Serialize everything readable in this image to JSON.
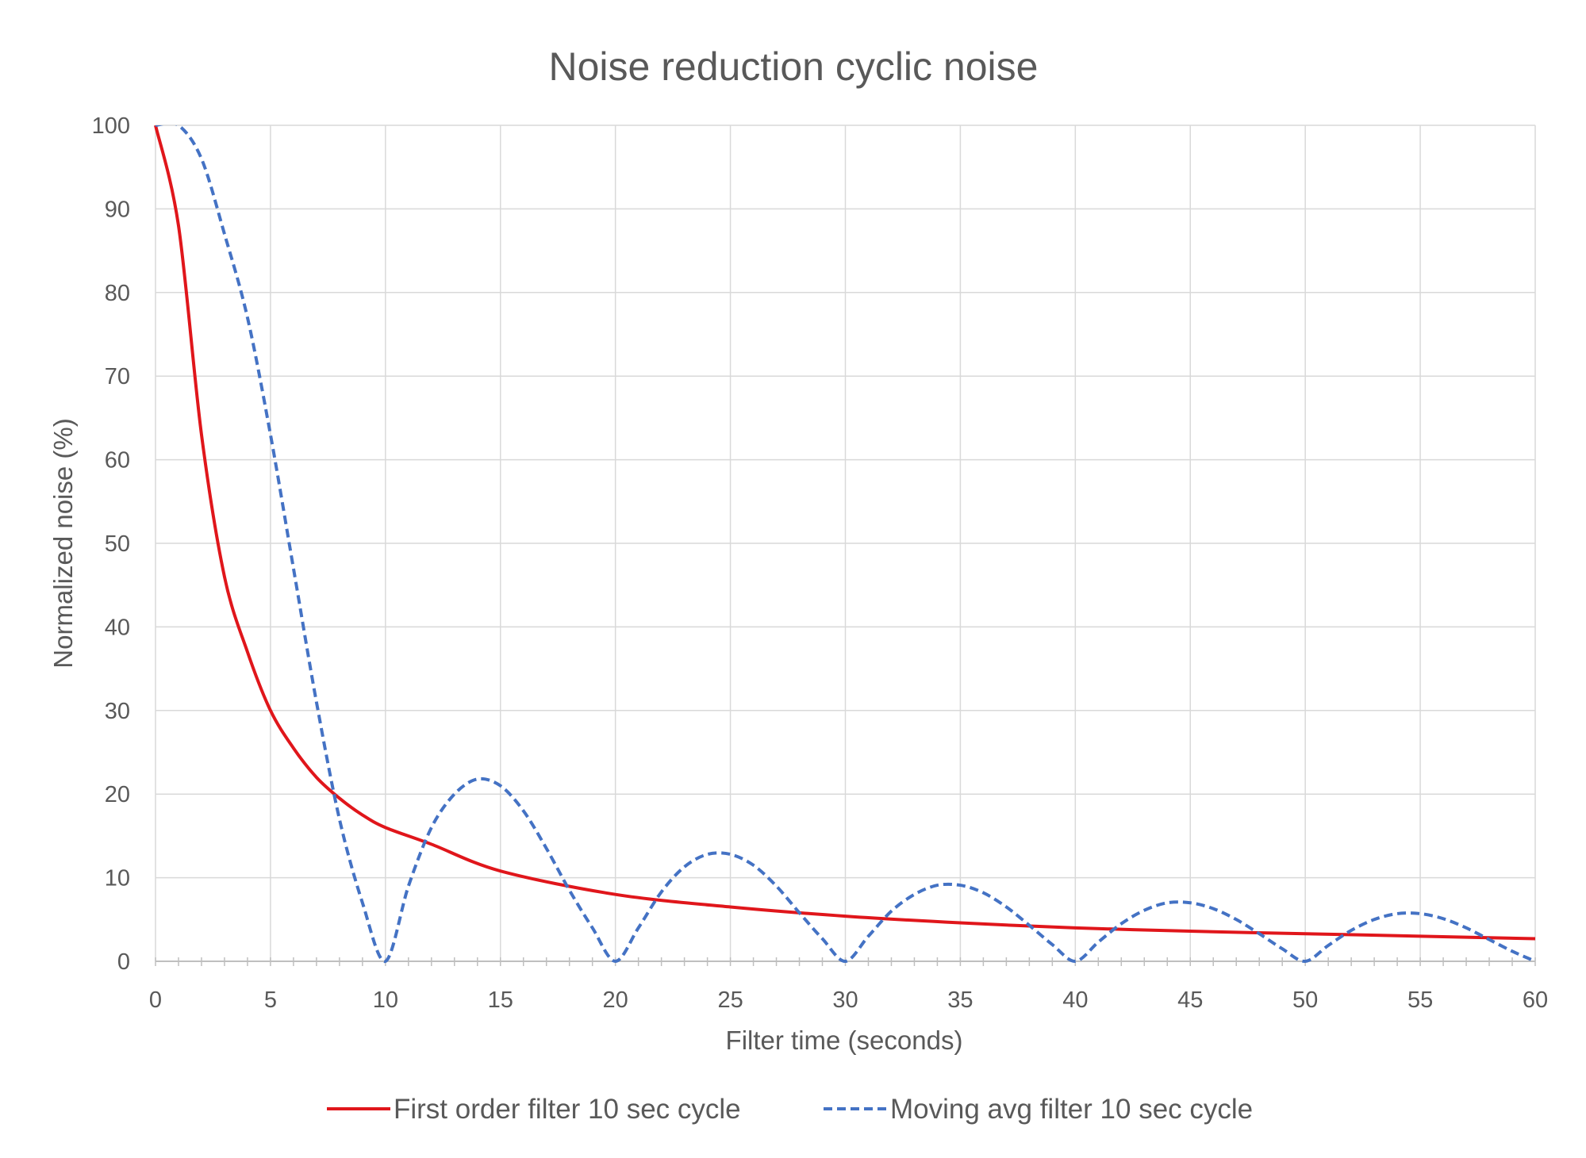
{
  "chart_data": {
    "type": "line",
    "title": "Noise reduction cyclic noise",
    "xlabel": "Filter time (seconds)",
    "ylabel": "Normalized noise (%)",
    "xlim": [
      0,
      60
    ],
    "ylim": [
      0,
      100
    ],
    "x_ticks": [
      "0",
      "5",
      "10",
      "15",
      "20",
      "25",
      "30",
      "35",
      "40",
      "45",
      "50",
      "55",
      "60"
    ],
    "y_ticks": [
      "0",
      "10",
      "20",
      "30",
      "40",
      "50",
      "60",
      "70",
      "80",
      "90",
      "100"
    ],
    "grid": true,
    "legend_position": "bottom",
    "series": [
      {
        "name": "First order filter 10 sec cycle",
        "color": "#e0161b",
        "style": "solid",
        "x": [
          0,
          1,
          2,
          3,
          4,
          5,
          6,
          7,
          8,
          9,
          10,
          12,
          15,
          20,
          25,
          30,
          35,
          40,
          45,
          50,
          55,
          60
        ],
        "y": [
          100,
          88,
          63,
          46,
          37,
          30,
          25.5,
          22,
          19.5,
          17.5,
          16,
          14,
          10.8,
          8,
          6.5,
          5.4,
          4.6,
          4,
          3.6,
          3.3,
          3,
          2.7
        ]
      },
      {
        "name": "Moving avg filter 10 sec cycle",
        "color": "#4472c4",
        "style": "dashed",
        "x": [
          0,
          1,
          2,
          3,
          4,
          5,
          6,
          7,
          8,
          9,
          10,
          11,
          12,
          13,
          14,
          15,
          16,
          17,
          18,
          19,
          20,
          21,
          22,
          23,
          24,
          25,
          26,
          27,
          28,
          29,
          30,
          31,
          32,
          33,
          34,
          35,
          36,
          37,
          38,
          39,
          40,
          41,
          42,
          43,
          44,
          45,
          46,
          47,
          48,
          49,
          50,
          51,
          52,
          53,
          54,
          55,
          56,
          57,
          58,
          59,
          60
        ],
        "y": [
          100,
          100,
          96,
          87,
          77,
          63,
          47,
          31,
          17,
          7,
          0,
          9,
          16,
          20,
          21.8,
          21,
          18,
          13.5,
          8.5,
          4,
          0,
          4,
          8.3,
          11.3,
          12.8,
          12.8,
          11.5,
          9,
          5.8,
          2.7,
          0,
          3,
          6,
          8,
          9.1,
          9.1,
          8.2,
          6.5,
          4.3,
          2,
          0,
          2.3,
          4.5,
          6.1,
          7,
          7,
          6.3,
          5,
          3.3,
          1.5,
          0,
          1.9,
          3.7,
          5,
          5.7,
          5.7,
          5.1,
          4,
          2.6,
          1.2,
          0
        ]
      }
    ]
  }
}
